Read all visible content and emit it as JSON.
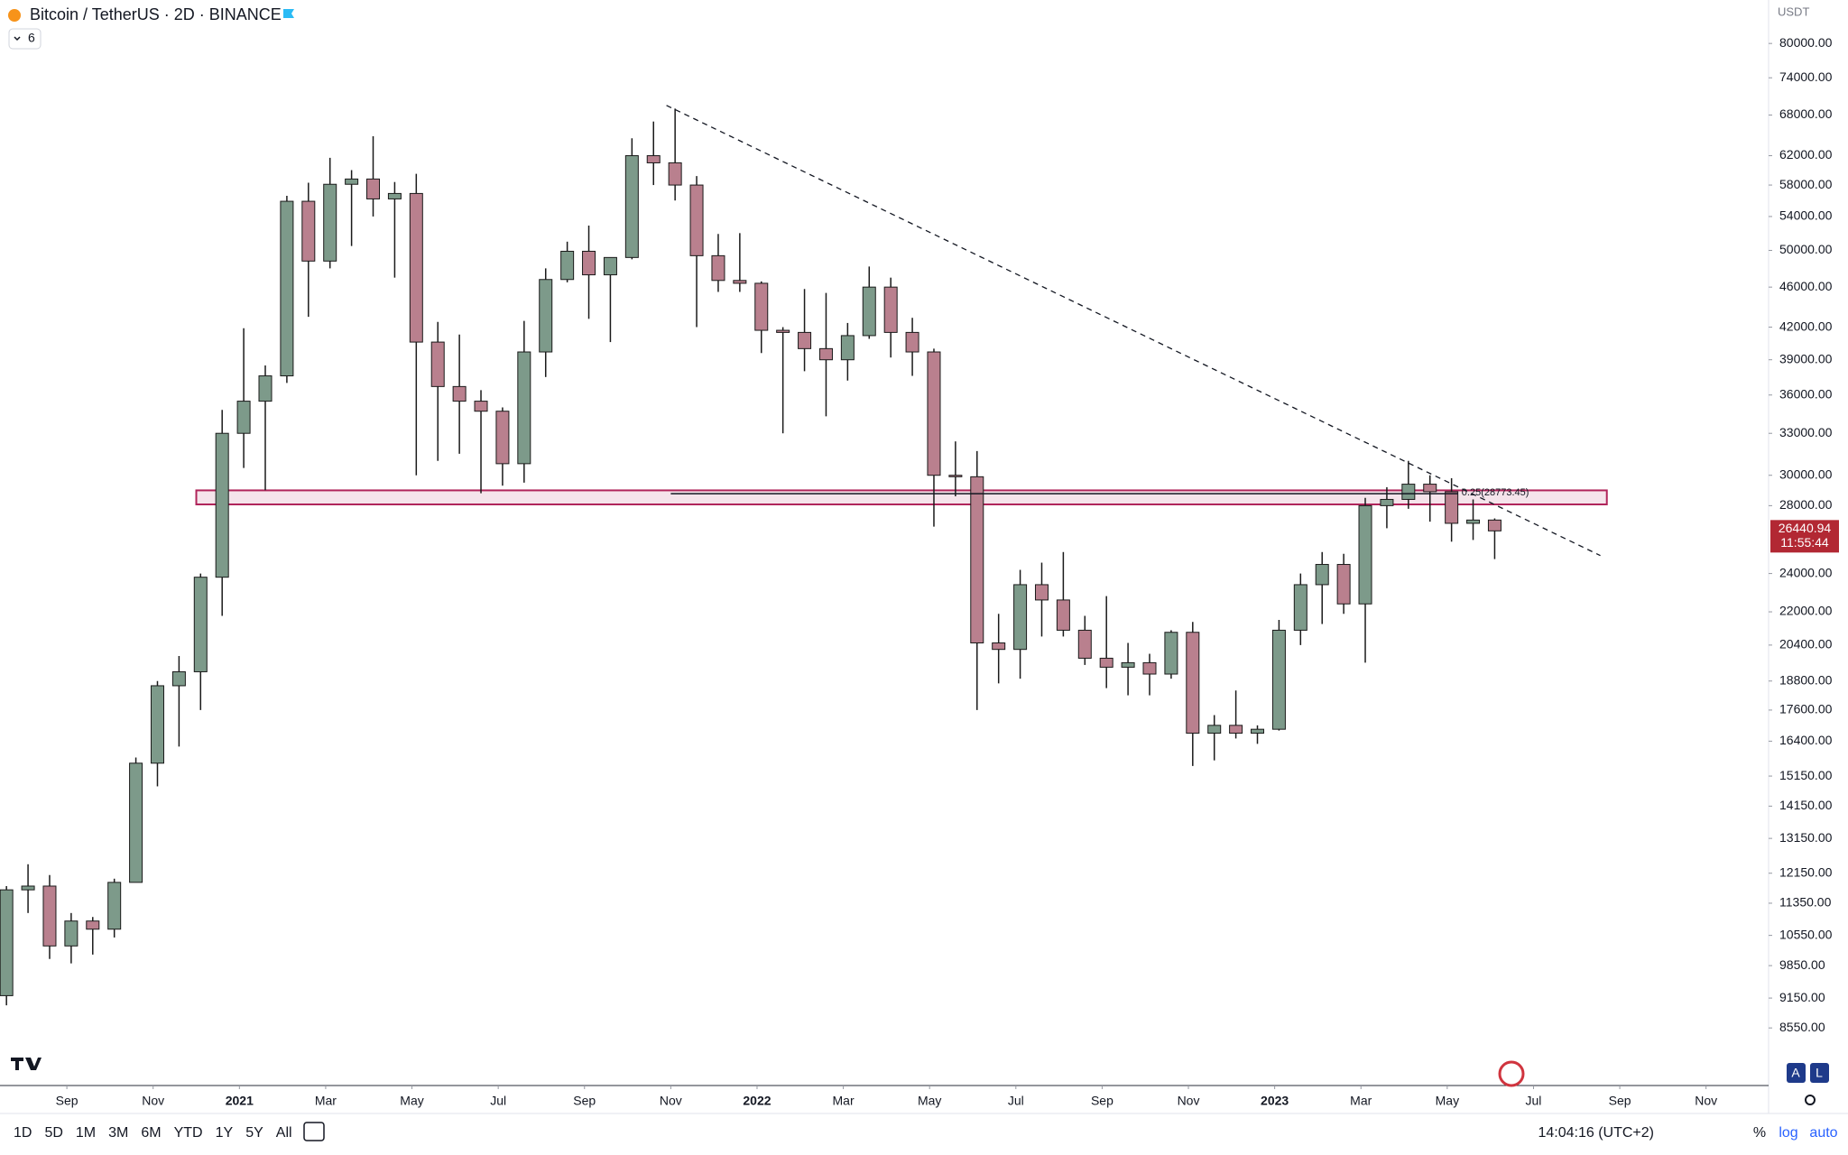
{
  "header": {
    "title": "Bitcoin / TetherUS · 2D · BINANCE",
    "indicator_count": "6",
    "currency": "USDT"
  },
  "chart_data": {
    "type": "candlestick",
    "x": [
      0,
      1,
      2,
      3,
      4,
      5,
      6,
      7,
      8,
      9,
      10,
      11,
      12,
      13,
      14,
      15,
      16,
      17,
      18,
      19,
      20,
      21,
      22,
      23,
      24,
      25,
      26,
      27,
      28,
      29,
      30,
      31,
      32,
      33,
      34,
      35,
      36,
      37,
      38,
      39,
      40,
      41,
      42,
      43,
      44,
      45,
      46,
      47,
      48,
      49,
      50,
      51,
      52,
      53,
      54,
      55,
      56,
      57,
      58,
      59,
      60,
      61,
      62,
      63,
      64,
      65,
      66,
      67,
      68,
      69
    ],
    "open": [
      9200,
      11700,
      11800,
      10300,
      10900,
      10700,
      11900,
      15600,
      18600,
      19200,
      23800,
      33000,
      35500,
      37600,
      55900,
      48800,
      58100,
      58800,
      56200,
      56900,
      40600,
      36700,
      35500,
      34700,
      30800,
      39700,
      46800,
      49900,
      47300,
      49200,
      62000,
      61000,
      58000,
      49400,
      46700,
      46400,
      41700,
      41500,
      40000,
      39000,
      41200,
      46000,
      41500,
      39700,
      30000,
      29900,
      20500,
      20200,
      23400,
      22600,
      21100,
      19800,
      19400,
      19600,
      19100,
      21000,
      16700,
      17000,
      16700,
      16850,
      21100,
      23400,
      24500,
      22400,
      28000,
      28400,
      29400,
      28900,
      26900,
      27100
    ],
    "high": [
      11800,
      12400,
      12100,
      11100,
      11000,
      12000,
      15800,
      18800,
      19900,
      24000,
      34800,
      41900,
      38500,
      56600,
      58300,
      61700,
      60000,
      64800,
      58400,
      59500,
      42500,
      41300,
      36400,
      35000,
      42600,
      48000,
      51000,
      52900,
      49000,
      64500,
      67000,
      69000,
      59200,
      51900,
      52000,
      46600,
      42000,
      45800,
      45400,
      42400,
      48200,
      47000,
      42900,
      40000,
      32400,
      31700,
      21900,
      24200,
      24600,
      25200,
      21800,
      22800,
      20500,
      20000,
      21100,
      21500,
      17400,
      18400,
      17000,
      21600,
      24000,
      25200,
      25100,
      28500,
      29200,
      31000,
      30000,
      29800,
      28400,
      27200
    ],
    "low": [
      9000,
      11100,
      10000,
      9900,
      10100,
      10500,
      11900,
      14800,
      16200,
      17600,
      21800,
      30500,
      29000,
      37000,
      43000,
      48000,
      50500,
      54000,
      47000,
      30000,
      31000,
      31500,
      28800,
      29300,
      29500,
      37500,
      46500,
      42800,
      40600,
      49000,
      58000,
      56000,
      42000,
      45500,
      45500,
      39600,
      33000,
      38000,
      34300,
      37200,
      40900,
      39200,
      37600,
      26700,
      28600,
      17600,
      18700,
      18900,
      20800,
      20800,
      19500,
      18500,
      18200,
      18200,
      18900,
      15500,
      15700,
      16500,
      16300,
      16800,
      20400,
      21400,
      21900,
      19600,
      26600,
      27800,
      27000,
      25800,
      25900,
      24800
    ],
    "close": [
      11700,
      11800,
      10300,
      10900,
      10700,
      11900,
      15600,
      18600,
      19200,
      23800,
      33000,
      35500,
      37600,
      55900,
      48800,
      58100,
      58800,
      56200,
      56900,
      40600,
      36700,
      35500,
      34700,
      30800,
      39700,
      46800,
      49900,
      47300,
      49200,
      62000,
      61000,
      58000,
      49400,
      46700,
      46400,
      41700,
      41500,
      40000,
      39000,
      41200,
      46000,
      41500,
      39700,
      30000,
      29900,
      20500,
      20200,
      23400,
      22600,
      21100,
      19800,
      19400,
      19600,
      19100,
      21000,
      16700,
      17000,
      16700,
      16850,
      21100,
      23400,
      24500,
      22400,
      28000,
      28400,
      29400,
      28900,
      26900,
      27100,
      26440.94
    ],
    "up_color": "#7d9a8a",
    "down_color": "#b9808e",
    "wick_color": "#1a1a1a",
    "log_scale": true,
    "xlim": [
      -0.3,
      81.7
    ],
    "xticks": [
      {
        "value": 2.8,
        "label": "Sep"
      },
      {
        "value": 6.8,
        "label": "Nov"
      },
      {
        "value": 10.8,
        "label": "2021"
      },
      {
        "value": 14.8,
        "label": "Mar"
      },
      {
        "value": 18.8,
        "label": "May"
      },
      {
        "value": 22.8,
        "label": "Jul"
      },
      {
        "value": 26.8,
        "label": "Sep"
      },
      {
        "value": 30.8,
        "label": "Nov"
      },
      {
        "value": 34.8,
        "label": "2022"
      },
      {
        "value": 38.8,
        "label": "Mar"
      },
      {
        "value": 42.8,
        "label": "May"
      },
      {
        "value": 46.8,
        "label": "Jul"
      },
      {
        "value": 50.8,
        "label": "Sep"
      },
      {
        "value": 54.8,
        "label": "Nov"
      },
      {
        "value": 58.8,
        "label": "2023"
      },
      {
        "value": 62.8,
        "label": "Mar"
      },
      {
        "value": 66.8,
        "label": "May"
      },
      {
        "value": 70.8,
        "label": "Jul"
      },
      {
        "value": 74.8,
        "label": "Sep"
      },
      {
        "value": 78.8,
        "label": "Nov"
      }
    ],
    "ylim": [
      7517,
      88300
    ],
    "yticks": [
      {
        "value": 80000,
        "label": "80000.00"
      },
      {
        "value": 74000,
        "label": "74000.00"
      },
      {
        "value": 68000,
        "label": "68000.00"
      },
      {
        "value": 62000,
        "label": "62000.00"
      },
      {
        "value": 58000,
        "label": "58000.00"
      },
      {
        "value": 54000,
        "label": "54000.00"
      },
      {
        "value": 50000,
        "label": "50000.00"
      },
      {
        "value": 46000,
        "label": "46000.00"
      },
      {
        "value": 42000,
        "label": "42000.00"
      },
      {
        "value": 39000,
        "label": "39000.00"
      },
      {
        "value": 36000,
        "label": "36000.00"
      },
      {
        "value": 33000,
        "label": "33000.00"
      },
      {
        "value": 30000,
        "label": "30000.00"
      },
      {
        "value": 28000,
        "label": "28000.00"
      },
      {
        "value": 24000,
        "label": "24000.00"
      },
      {
        "value": 22000,
        "label": "22000.00"
      },
      {
        "value": 20400,
        "label": "20400.00"
      },
      {
        "value": 18800,
        "label": "18800.00"
      },
      {
        "value": 17600,
        "label": "17600.00"
      },
      {
        "value": 16400,
        "label": "16400.00"
      },
      {
        "value": 15150,
        "label": "15150.00"
      },
      {
        "value": 14150,
        "label": "14150.00"
      },
      {
        "value": 13150,
        "label": "13150.00"
      },
      {
        "value": 12150,
        "label": "12150.00"
      },
      {
        "value": 11350,
        "label": "11350.00"
      },
      {
        "value": 10550,
        "label": "10550.00"
      },
      {
        "value": 9850,
        "label": "9850.00"
      },
      {
        "value": 9150,
        "label": "9150.00"
      },
      {
        "value": 8550,
        "label": "8550.00"
      }
    ],
    "last_price": 26440.94,
    "countdown": "11:55:44",
    "last_price_color": "#b22833",
    "trendline": {
      "x": [
        30.6,
        73.9
      ],
      "y": [
        69500,
        25000
      ]
    },
    "zone": {
      "x": [
        8.8,
        74.2
      ],
      "y": [
        28080,
        28990
      ],
      "color": "#b0245a"
    },
    "fib": {
      "label": "0.25(28773.45)",
      "value": 28773.45,
      "x": [
        30.8,
        67.3
      ]
    }
  },
  "toolbar": {
    "ranges": [
      "1D",
      "5D",
      "1M",
      "3M",
      "6M",
      "YTD",
      "1Y",
      "5Y",
      "All"
    ],
    "clock": "14:04:16 (UTC+2)",
    "percent": "%",
    "log": "log",
    "auto": "auto",
    "a": "A",
    "l": "L"
  }
}
